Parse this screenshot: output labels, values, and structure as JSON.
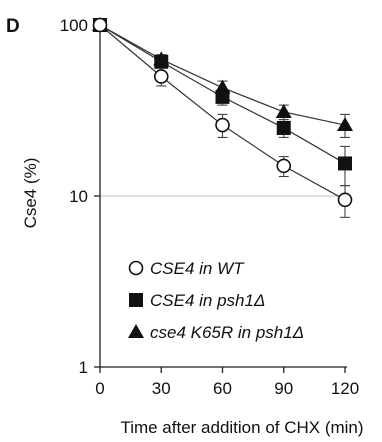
{
  "panel_label": "D",
  "chart_data": {
    "type": "line",
    "xlabel": "Time after addition of CHX (min)",
    "ylabel": "Cse4 (%)",
    "y_scale": "log",
    "ylim": [
      1,
      100
    ],
    "xlim": [
      0,
      120
    ],
    "x_ticks": [
      0,
      30,
      60,
      90,
      120
    ],
    "y_ticks": [
      1,
      10,
      100
    ],
    "x": [
      0,
      30,
      60,
      90,
      120
    ],
    "reference_line": 10,
    "legend_position": "bottom-left",
    "series": [
      {
        "name": "CSE4 in WT",
        "marker": "open-circle",
        "values": [
          100,
          50,
          26,
          15,
          9.5
        ],
        "errors": [
          0,
          6,
          4,
          2,
          2
        ]
      },
      {
        "name": "CSE4 in psh1Δ",
        "marker": "filled-square",
        "values": [
          100,
          61,
          38,
          25,
          15.5
        ],
        "errors": [
          0,
          4,
          4,
          3,
          4
        ]
      },
      {
        "name": "cse4 K65R in psh1Δ",
        "marker": "filled-triangle",
        "values": [
          100,
          63,
          43,
          31,
          26
        ],
        "errors": [
          0,
          4,
          4,
          3,
          4
        ]
      }
    ]
  }
}
